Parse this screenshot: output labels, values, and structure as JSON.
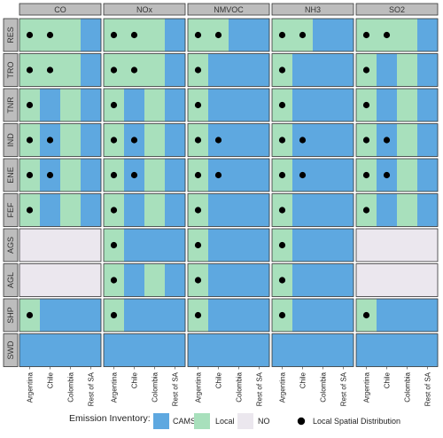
{
  "chart_data": {
    "type": "heatmap",
    "title": "",
    "xlabel": "",
    "ylabel": "",
    "facet_columns": [
      "CO",
      "NOx",
      "NMVOC",
      "NH3",
      "SO2"
    ],
    "facet_rows": [
      "RES",
      "TRO",
      "TNR",
      "IND",
      "ENE",
      "FEF",
      "AGS",
      "AGL",
      "SHP",
      "SWD"
    ],
    "x_categories": [
      "Argentina",
      "Chile",
      "Colombia",
      "Rest of SA"
    ],
    "cell_codes": {
      "C": "CAMS",
      "L": "Local",
      "N": "NO"
    },
    "cells": {
      "CO": {
        "RES": "LLLC",
        "TRO": "LLLC",
        "TNR": "LCLC",
        "IND": "LCLC",
        "ENE": "LCLC",
        "FEF": "LCLC",
        "AGS": "NNNN",
        "AGL": "NNNN",
        "SHP": "LCCC",
        "SWD": "CCCC"
      },
      "NOx": {
        "RES": "LLLC",
        "TRO": "LLLC",
        "TNR": "LCLC",
        "IND": "LCLC",
        "ENE": "LCLC",
        "FEF": "LCLC",
        "AGS": "LCCC",
        "AGL": "LCLC",
        "SHP": "LCCC",
        "SWD": "CCCC"
      },
      "NMVOC": {
        "RES": "LLCC",
        "TRO": "LCCC",
        "TNR": "LCCC",
        "IND": "LCCC",
        "ENE": "LCCC",
        "FEF": "LCCC",
        "AGS": "LCCC",
        "AGL": "LCCC",
        "SHP": "LCCC",
        "SWD": "CCCC"
      },
      "NH3": {
        "RES": "LLCC",
        "TRO": "LCCC",
        "TNR": "LCCC",
        "IND": "LCCC",
        "ENE": "LCCC",
        "FEF": "LCCC",
        "AGS": "LCCC",
        "AGL": "LCCC",
        "SHP": "LCCC",
        "SWD": "CCCC"
      },
      "SO2": {
        "RES": "LLLC",
        "TRO": "LCLC",
        "TNR": "LCLC",
        "IND": "LCLC",
        "ENE": "LCLC",
        "FEF": "LCLC",
        "AGS": "NNNN",
        "AGL": "NNNN",
        "SHP": "LCCC",
        "SWD": "CCCC"
      }
    },
    "dots": {
      "CO": {
        "RES": "11",
        "TRO": "11",
        "TNR": "10",
        "IND": "11",
        "ENE": "11",
        "FEF": "10",
        "AGS": "",
        "AGL": "",
        "SHP": "10",
        "SWD": ""
      },
      "NOx": {
        "RES": "11",
        "TRO": "11",
        "TNR": "10",
        "IND": "11",
        "ENE": "11",
        "FEF": "10",
        "AGS": "1",
        "AGL": "1",
        "SHP": "1",
        "SWD": ""
      },
      "NMVOC": {
        "RES": "11",
        "TRO": "1",
        "TNR": "1",
        "IND": "11",
        "ENE": "11",
        "FEF": "1",
        "AGS": "1",
        "AGL": "1",
        "SHP": "1",
        "SWD": ""
      },
      "NH3": {
        "RES": "11",
        "TRO": "1",
        "TNR": "1",
        "IND": "11",
        "ENE": "11",
        "FEF": "1",
        "AGS": "1",
        "AGL": "1",
        "SHP": "1",
        "SWD": ""
      },
      "SO2": {
        "RES": "11",
        "TRO": "1",
        "TNR": "1",
        "IND": "11",
        "ENE": "11",
        "FEF": "1",
        "AGS": "",
        "AGL": "",
        "SHP": "1",
        "SWD": ""
      }
    },
    "colors": {
      "CAMS": "#5ea8e0",
      "Local": "#a8e0bc",
      "NO": "#ebe7ee"
    },
    "legend": {
      "position": "bottom",
      "title": "Emission Inventory:",
      "items": [
        "CAMS",
        "Local",
        "NO"
      ],
      "dot_label": "Local Spatial Distribution"
    }
  }
}
